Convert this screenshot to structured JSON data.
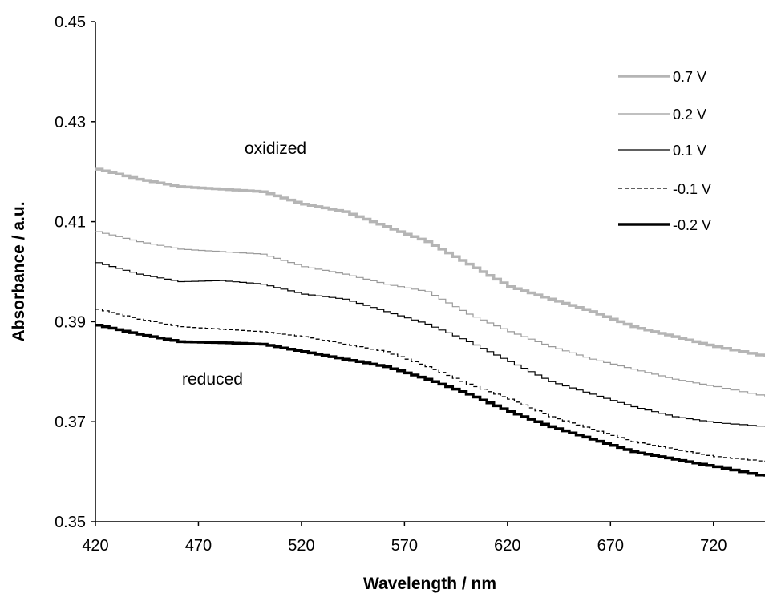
{
  "chart_data": {
    "type": "line",
    "xlabel": "Wavelength / nm",
    "ylabel": "Absorbance / a.u.",
    "xlim": [
      420,
      745
    ],
    "ylim": [
      0.35,
      0.45
    ],
    "x_ticks": [
      "420",
      "470",
      "520",
      "570",
      "620",
      "670",
      "720"
    ],
    "y_ticks": [
      "0.35",
      "0.37",
      "0.39",
      "0.41",
      "0.43",
      "0.45"
    ],
    "grid": false,
    "legend_position": "top-right",
    "annotations": [
      {
        "text": "oxidized"
      },
      {
        "text": "reduced"
      }
    ],
    "x": [
      420,
      440,
      460,
      480,
      500,
      520,
      540,
      560,
      580,
      600,
      620,
      640,
      660,
      680,
      700,
      720,
      745
    ],
    "series": [
      {
        "name": "0.7 V",
        "color": "#b5b5b5",
        "style": "solid-thick",
        "values": [
          0.4205,
          0.4185,
          0.417,
          0.4165,
          0.416,
          0.4135,
          0.412,
          0.409,
          0.406,
          0.4015,
          0.397,
          0.3945,
          0.392,
          0.389,
          0.387,
          0.385,
          0.383
        ]
      },
      {
        "name": "0.2 V",
        "color": "#9a9a9a",
        "style": "solid-thin",
        "values": [
          0.408,
          0.406,
          0.4045,
          0.404,
          0.4035,
          0.401,
          0.3995,
          0.3975,
          0.396,
          0.3915,
          0.388,
          0.385,
          0.3825,
          0.3805,
          0.3785,
          0.377,
          0.375
        ]
      },
      {
        "name": "0.1 V",
        "color": "#000000",
        "style": "solid-thin",
        "values": [
          0.4018,
          0.3995,
          0.398,
          0.3982,
          0.3975,
          0.3955,
          0.3945,
          0.392,
          0.3895,
          0.386,
          0.382,
          0.378,
          0.3755,
          0.373,
          0.371,
          0.3698,
          0.369
        ]
      },
      {
        "name": "-0.1 V",
        "color": "#000000",
        "style": "dashed",
        "values": [
          0.3925,
          0.3905,
          0.389,
          0.3885,
          0.388,
          0.387,
          0.3855,
          0.384,
          0.381,
          0.3775,
          0.3745,
          0.371,
          0.3685,
          0.366,
          0.3645,
          0.363,
          0.362
        ]
      },
      {
        "name": "-0.2 V",
        "color": "#000000",
        "style": "solid-thick",
        "values": [
          0.3893,
          0.3875,
          0.386,
          0.3858,
          0.3855,
          0.384,
          0.3825,
          0.381,
          0.3785,
          0.3755,
          0.372,
          0.369,
          0.3665,
          0.364,
          0.3625,
          0.361,
          0.359
        ]
      }
    ]
  }
}
